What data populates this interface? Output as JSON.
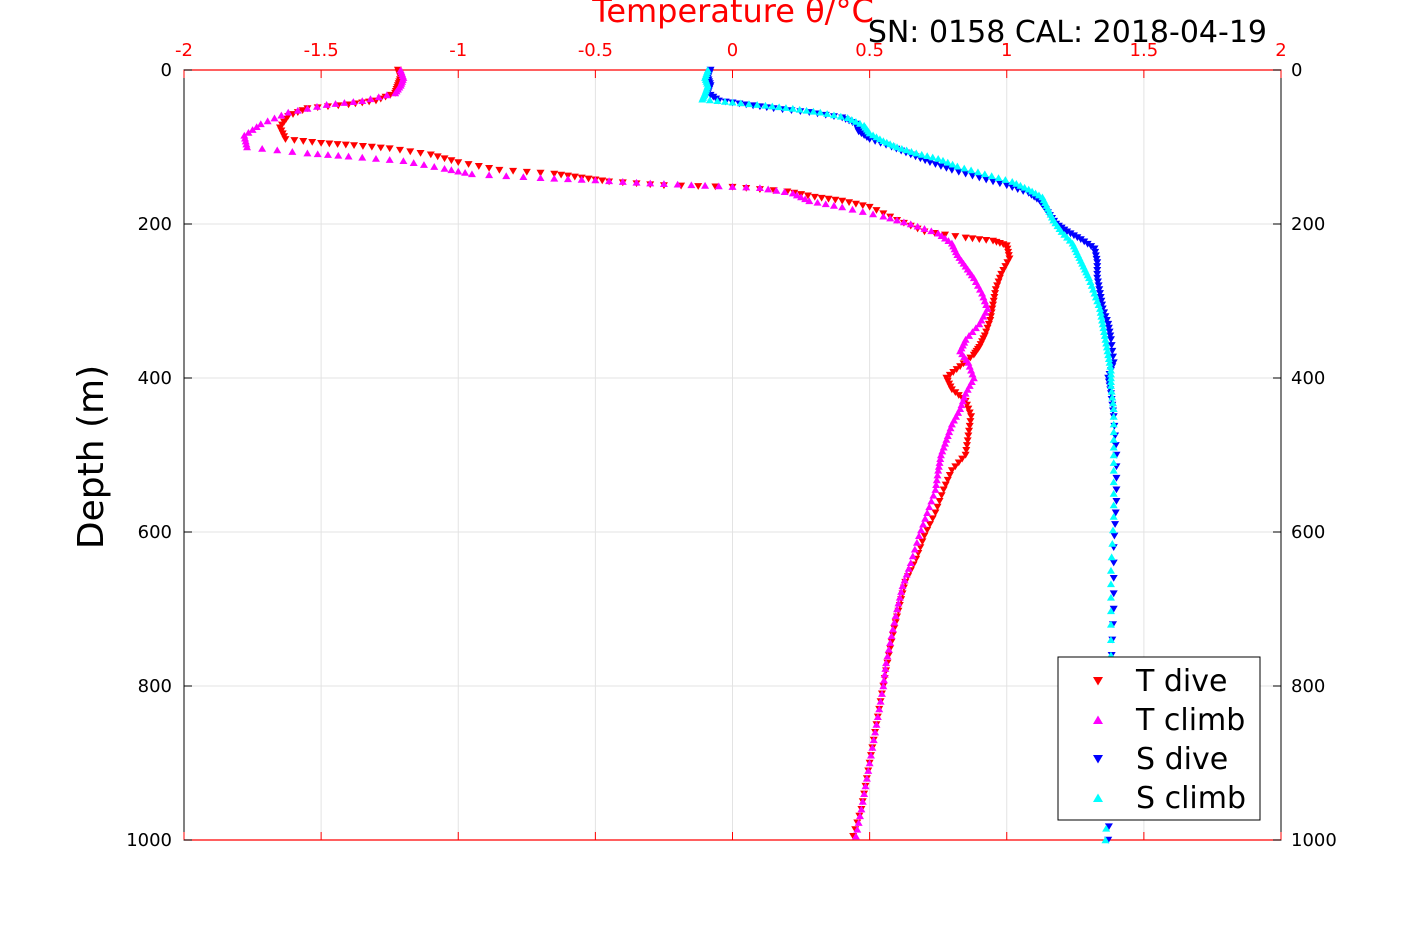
{
  "chart_data": {
    "type": "scatter",
    "title": "Temperature θ/°C",
    "subtitle": "SN: 0158  CAL: 2018-04-19",
    "ylabel": "Depth (m)",
    "xlim": [
      -2,
      2
    ],
    "ylim": [
      0,
      1000
    ],
    "y_reversed": true,
    "x_ticks": [
      "-2",
      "-1.5",
      "-1",
      "-0.5",
      "0",
      "0.5",
      "1",
      "1.5",
      "2"
    ],
    "y_ticks": [
      "0",
      "200",
      "400",
      "600",
      "800",
      "1000"
    ],
    "grid": true,
    "legend_position": "bottom-right",
    "series": [
      {
        "name": "T dive",
        "color": "#ff0000",
        "marker": "triangle-down",
        "points": [
          [
            -1.22,
            0
          ],
          [
            -1.21,
            10
          ],
          [
            -1.22,
            20
          ],
          [
            -1.23,
            30
          ],
          [
            -1.3,
            40
          ],
          [
            -1.4,
            45
          ],
          [
            -1.55,
            50
          ],
          [
            -1.62,
            60
          ],
          [
            -1.65,
            75
          ],
          [
            -1.63,
            90
          ],
          [
            -1.5,
            95
          ],
          [
            -1.38,
            98
          ],
          [
            -1.25,
            102
          ],
          [
            -1.1,
            110
          ],
          [
            -1.0,
            120
          ],
          [
            -0.85,
            130
          ],
          [
            -0.65,
            135
          ],
          [
            -0.55,
            140
          ],
          [
            -0.45,
            145
          ],
          [
            -0.25,
            150
          ],
          [
            0.0,
            152
          ],
          [
            0.2,
            158
          ],
          [
            0.3,
            165
          ],
          [
            0.4,
            170
          ],
          [
            0.5,
            178
          ],
          [
            0.6,
            195
          ],
          [
            0.7,
            210
          ],
          [
            0.85,
            218
          ],
          [
            0.95,
            222
          ],
          [
            1.0,
            228
          ],
          [
            1.01,
            245
          ],
          [
            0.98,
            265
          ],
          [
            0.96,
            285
          ],
          [
            0.95,
            305
          ],
          [
            0.94,
            325
          ],
          [
            0.92,
            345
          ],
          [
            0.9,
            360
          ],
          [
            0.88,
            370
          ],
          [
            0.83,
            385
          ],
          [
            0.78,
            400
          ],
          [
            0.8,
            415
          ],
          [
            0.85,
            430
          ],
          [
            0.87,
            450
          ],
          [
            0.86,
            475
          ],
          [
            0.85,
            500
          ],
          [
            0.8,
            520
          ],
          [
            0.77,
            545
          ],
          [
            0.74,
            575
          ],
          [
            0.7,
            605
          ],
          [
            0.67,
            635
          ],
          [
            0.63,
            665
          ],
          [
            0.61,
            695
          ],
          [
            0.59,
            725
          ],
          [
            0.57,
            760
          ],
          [
            0.55,
            800
          ],
          [
            0.53,
            840
          ],
          [
            0.51,
            880
          ],
          [
            0.49,
            920
          ],
          [
            0.47,
            960
          ],
          [
            0.44,
            995
          ]
        ]
      },
      {
        "name": "T climb",
        "color": "#ff00ff",
        "marker": "triangle-up",
        "points": [
          [
            -1.21,
            0
          ],
          [
            -1.2,
            10
          ],
          [
            -1.21,
            20
          ],
          [
            -1.23,
            30
          ],
          [
            -1.35,
            40
          ],
          [
            -1.48,
            45
          ],
          [
            -1.62,
            55
          ],
          [
            -1.72,
            70
          ],
          [
            -1.78,
            85
          ],
          [
            -1.77,
            100
          ],
          [
            -1.55,
            108
          ],
          [
            -1.4,
            112
          ],
          [
            -1.2,
            118
          ],
          [
            -1.05,
            128
          ],
          [
            -0.95,
            135
          ],
          [
            -0.7,
            140
          ],
          [
            -0.5,
            143
          ],
          [
            -0.3,
            147
          ],
          [
            -0.1,
            150
          ],
          [
            0.1,
            153
          ],
          [
            0.22,
            160
          ],
          [
            0.28,
            170
          ],
          [
            0.4,
            178
          ],
          [
            0.55,
            190
          ],
          [
            0.65,
            200
          ],
          [
            0.75,
            212
          ],
          [
            0.8,
            225
          ],
          [
            0.82,
            240
          ],
          [
            0.85,
            255
          ],
          [
            0.88,
            270
          ],
          [
            0.91,
            290
          ],
          [
            0.93,
            310
          ],
          [
            0.9,
            330
          ],
          [
            0.85,
            350
          ],
          [
            0.83,
            365
          ],
          [
            0.86,
            380
          ],
          [
            0.88,
            400
          ],
          [
            0.85,
            420
          ],
          [
            0.83,
            440
          ],
          [
            0.8,
            460
          ],
          [
            0.78,
            480
          ],
          [
            0.76,
            500
          ],
          [
            0.75,
            520
          ],
          [
            0.74,
            545
          ],
          [
            0.71,
            575
          ],
          [
            0.68,
            605
          ],
          [
            0.65,
            640
          ],
          [
            0.62,
            670
          ],
          [
            0.6,
            700
          ],
          [
            0.58,
            735
          ],
          [
            0.56,
            770
          ],
          [
            0.55,
            800
          ],
          [
            0.53,
            840
          ],
          [
            0.51,
            880
          ],
          [
            0.49,
            920
          ],
          [
            0.47,
            960
          ],
          [
            0.45,
            995
          ]
        ]
      },
      {
        "name": "S dive",
        "color": "#0000ff",
        "marker": "triangle-down",
        "points": [
          [
            -0.08,
            0
          ],
          [
            -0.09,
            10
          ],
          [
            -0.08,
            20
          ],
          [
            -0.09,
            30
          ],
          [
            -0.05,
            40
          ],
          [
            0.05,
            45
          ],
          [
            0.15,
            50
          ],
          [
            0.28,
            55
          ],
          [
            0.4,
            62
          ],
          [
            0.45,
            70
          ],
          [
            0.46,
            80
          ],
          [
            0.5,
            90
          ],
          [
            0.58,
            100
          ],
          [
            0.65,
            110
          ],
          [
            0.72,
            120
          ],
          [
            0.8,
            130
          ],
          [
            0.9,
            140
          ],
          [
            1.0,
            150
          ],
          [
            1.08,
            160
          ],
          [
            1.12,
            170
          ],
          [
            1.15,
            185
          ],
          [
            1.18,
            200
          ],
          [
            1.22,
            210
          ],
          [
            1.27,
            220
          ],
          [
            1.32,
            232
          ],
          [
            1.33,
            250
          ],
          [
            1.33,
            270
          ],
          [
            1.34,
            290
          ],
          [
            1.35,
            310
          ],
          [
            1.37,
            330
          ],
          [
            1.38,
            350
          ],
          [
            1.39,
            380
          ],
          [
            1.37,
            400
          ],
          [
            1.38,
            420
          ],
          [
            1.39,
            450
          ],
          [
            1.4,
            500
          ],
          [
            1.4,
            560
          ],
          [
            1.39,
            620
          ],
          [
            1.39,
            700
          ],
          [
            1.38,
            780
          ],
          [
            1.38,
            860
          ],
          [
            1.38,
            930
          ],
          [
            1.37,
            1000
          ]
        ]
      },
      {
        "name": "S climb",
        "color": "#00ffff",
        "marker": "triangle-up",
        "points": [
          [
            -0.09,
            0
          ],
          [
            -0.1,
            10
          ],
          [
            -0.09,
            20
          ],
          [
            -0.1,
            30
          ],
          [
            -0.11,
            38
          ],
          [
            0.0,
            42
          ],
          [
            0.12,
            46
          ],
          [
            0.22,
            50
          ],
          [
            0.32,
            55
          ],
          [
            0.42,
            62
          ],
          [
            0.48,
            72
          ],
          [
            0.5,
            82
          ],
          [
            0.55,
            92
          ],
          [
            0.6,
            100
          ],
          [
            0.67,
            108
          ],
          [
            0.75,
            115
          ],
          [
            0.82,
            125
          ],
          [
            0.92,
            135
          ],
          [
            1.02,
            145
          ],
          [
            1.08,
            155
          ],
          [
            1.13,
            165
          ],
          [
            1.15,
            180
          ],
          [
            1.17,
            195
          ],
          [
            1.2,
            210
          ],
          [
            1.24,
            225
          ],
          [
            1.26,
            240
          ],
          [
            1.28,
            255
          ],
          [
            1.3,
            270
          ],
          [
            1.32,
            290
          ],
          [
            1.34,
            310
          ],
          [
            1.35,
            330
          ],
          [
            1.36,
            350
          ],
          [
            1.37,
            370
          ],
          [
            1.38,
            390
          ],
          [
            1.38,
            410
          ],
          [
            1.39,
            440
          ],
          [
            1.39,
            480
          ],
          [
            1.39,
            520
          ],
          [
            1.39,
            580
          ],
          [
            1.38,
            650
          ],
          [
            1.38,
            720
          ],
          [
            1.38,
            800
          ],
          [
            1.37,
            870
          ],
          [
            1.37,
            940
          ],
          [
            1.36,
            1000
          ]
        ]
      }
    ]
  }
}
